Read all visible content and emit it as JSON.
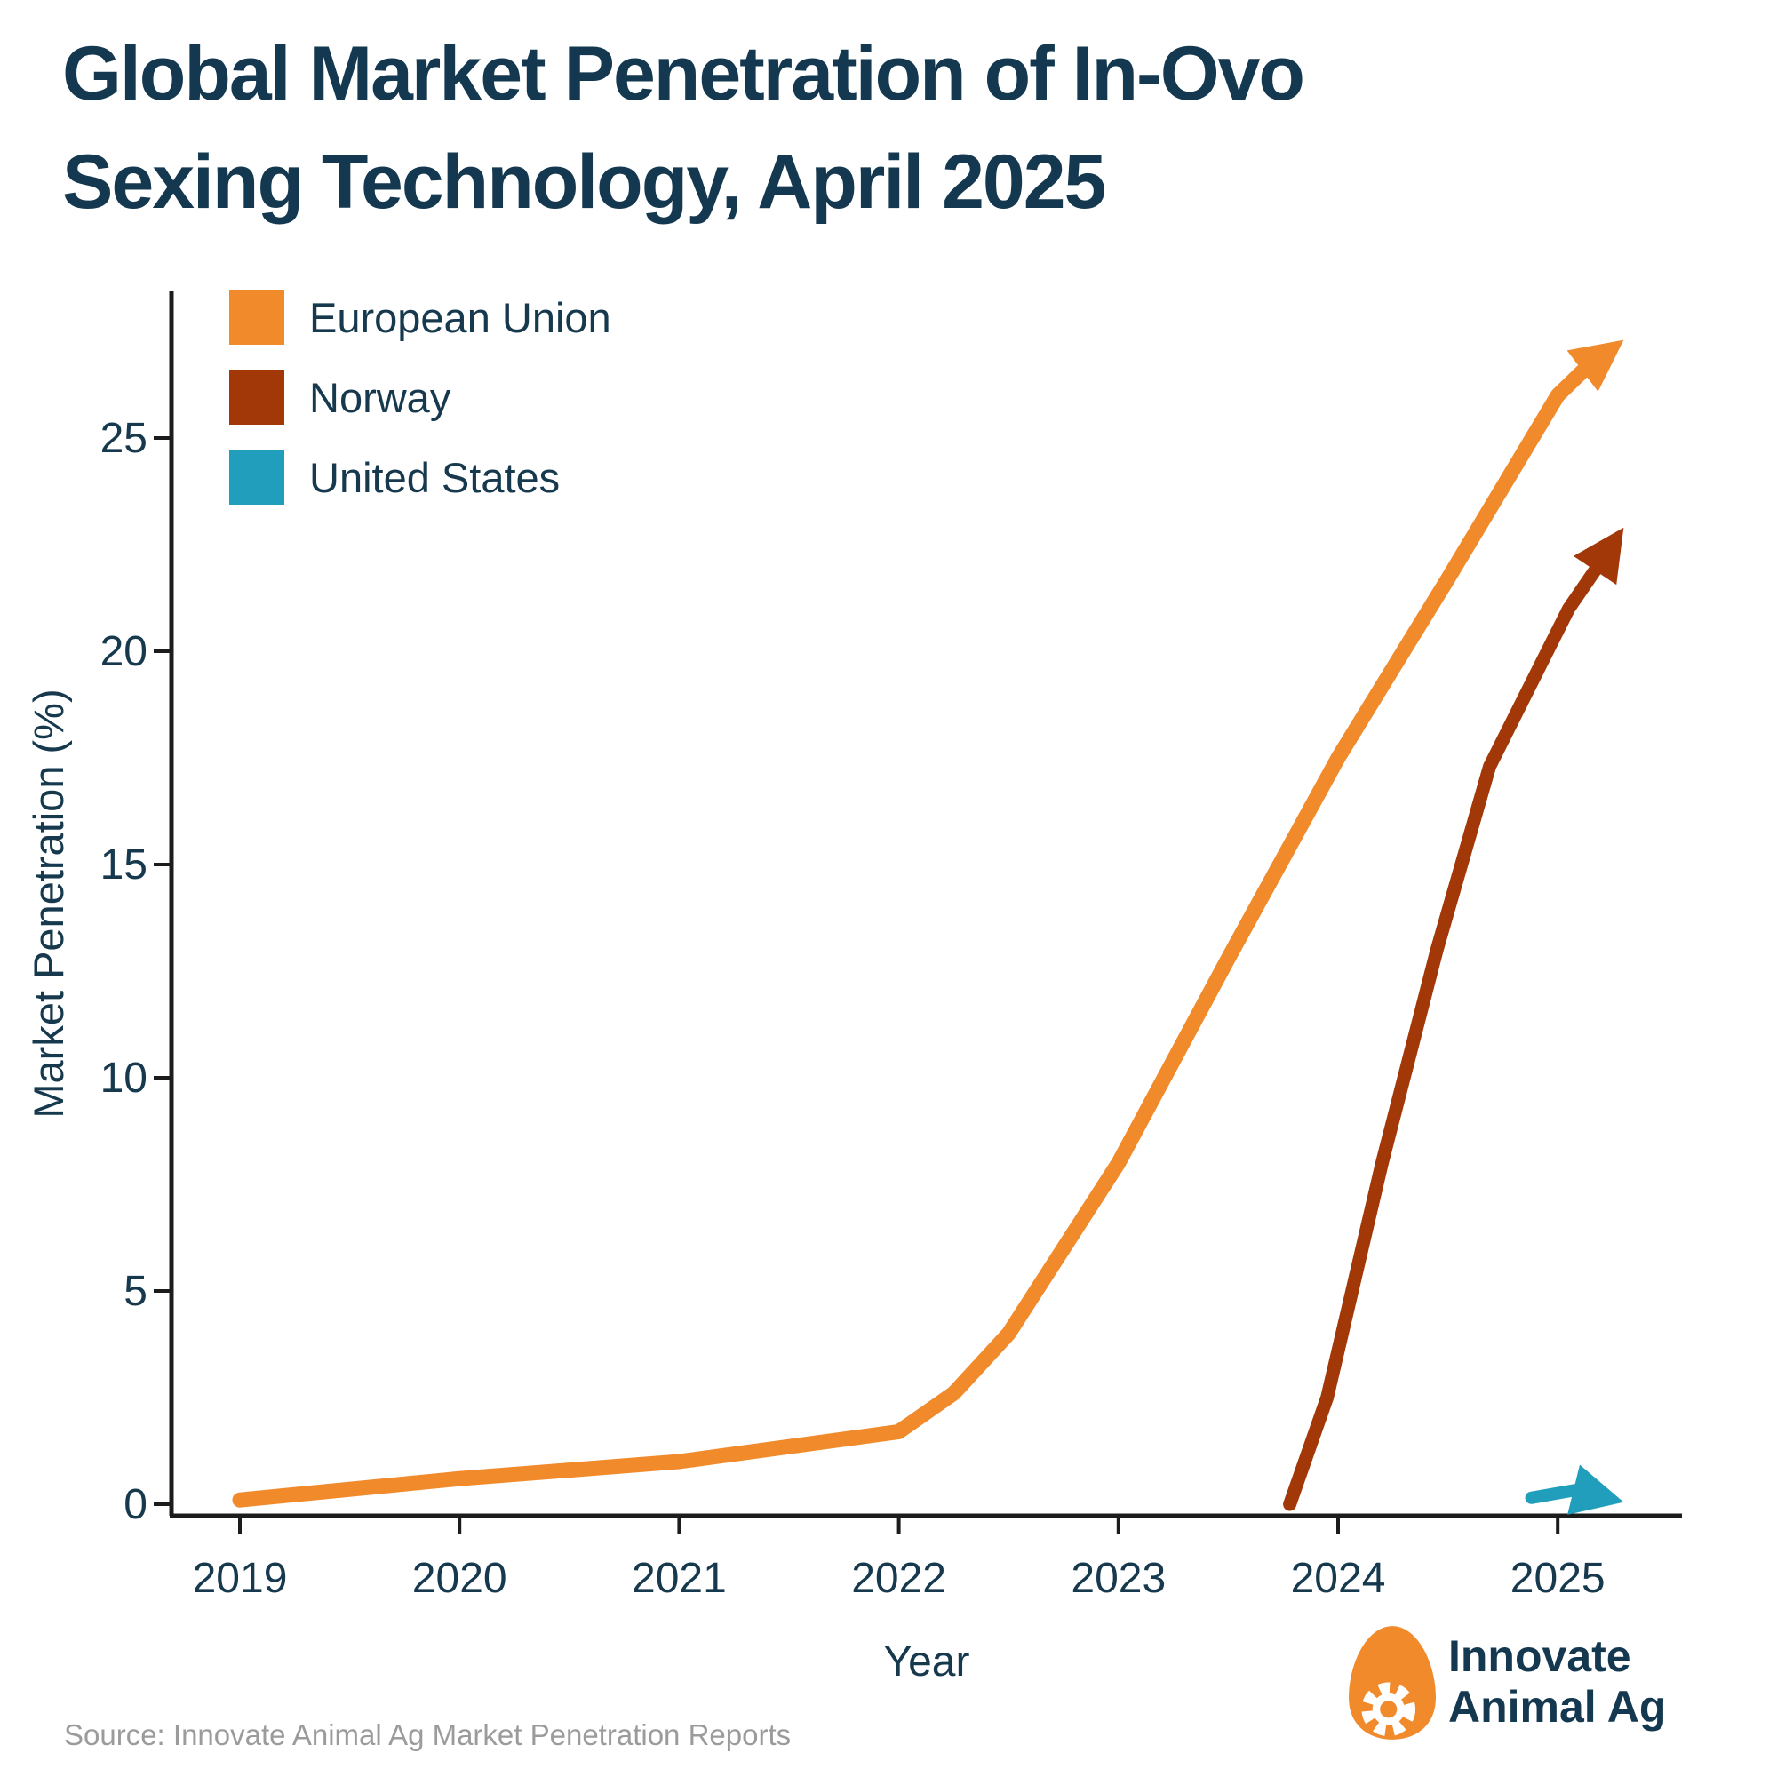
{
  "title": {
    "line1": "Global Market Penetration of In-Ovo",
    "line2": "Sexing Technology, April 2025"
  },
  "axes": {
    "y_label": "Market Penetration (%)",
    "x_label": "Year"
  },
  "source": "Source: Innovate Animal Ag Market Penetration Reports",
  "logo": {
    "line1": "Innovate",
    "line2": "Animal Ag"
  },
  "colors": {
    "title_navy": "#14384F",
    "label_navy": "#16394E",
    "axis_black": "#1C1C1C",
    "source_gray": "#9B9B9B",
    "eu_orange": "#F18A2B",
    "norway_rust": "#A23708",
    "us_teal": "#219EBC"
  },
  "chart_data": {
    "type": "line",
    "title": "Global Market Penetration of In-Ovo Sexing Technology, April 2025",
    "xlabel": "Year",
    "ylabel": "Market Penetration (%)",
    "x_ticks": [
      2019,
      2020,
      2021,
      2022,
      2023,
      2024,
      2025
    ],
    "y_ticks": [
      0,
      5,
      10,
      15,
      20,
      25
    ],
    "xlim": [
      2018.7,
      2025.6
    ],
    "ylim": [
      0,
      28
    ],
    "grid": false,
    "legend_position": "upper-left",
    "annotation": "each series ends in an arrowhead",
    "series": [
      {
        "name": "European Union",
        "color": "#F18A2B",
        "points": [
          [
            2019,
            0.1
          ],
          [
            2020,
            0.6
          ],
          [
            2021,
            1.0
          ],
          [
            2022,
            1.7
          ],
          [
            2022.25,
            2.6
          ],
          [
            2022.5,
            4.0
          ],
          [
            2023,
            8.0
          ],
          [
            2023.5,
            12.8
          ],
          [
            2024,
            17.5
          ],
          [
            2024.5,
            21.7
          ],
          [
            2025,
            26.0
          ],
          [
            2025.12,
            26.6
          ]
        ],
        "arrow_tip": [
          2025.3,
          27.3
        ]
      },
      {
        "name": "Norway",
        "color": "#A23708",
        "points": [
          [
            2023.78,
            0.0
          ],
          [
            2023.95,
            2.5
          ],
          [
            2024.2,
            8.0
          ],
          [
            2024.45,
            13.0
          ],
          [
            2024.69,
            17.3
          ],
          [
            2025.05,
            21.0
          ],
          [
            2025.17,
            21.9
          ]
        ],
        "arrow_tip": [
          2025.3,
          22.9
        ]
      },
      {
        "name": "United States",
        "color": "#219EBC",
        "points": [
          [
            2024.88,
            0.15
          ],
          [
            2025.08,
            0.33
          ]
        ],
        "arrow_tip": [
          2025.3,
          0.05
        ]
      }
    ]
  }
}
